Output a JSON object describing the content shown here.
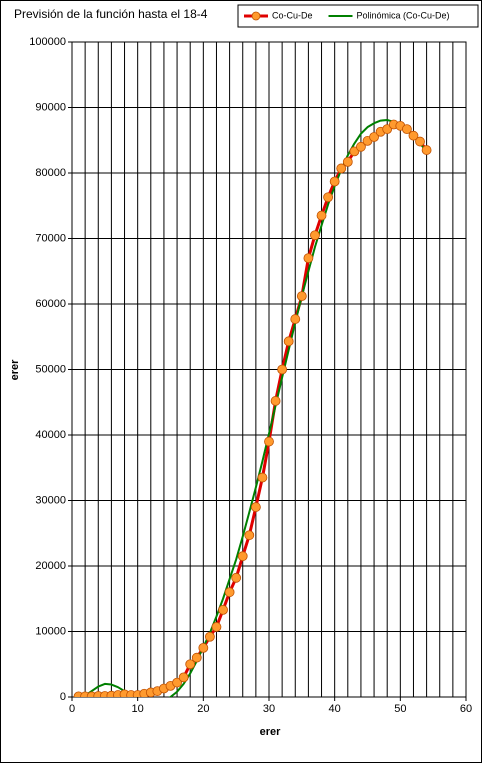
{
  "chart_data": {
    "type": "line",
    "title": "Previsión  de la función  hasta el 18-4",
    "x_label": "erer",
    "y_label": "erer",
    "x": [
      1,
      2,
      3,
      4,
      5,
      6,
      7,
      8,
      9,
      10,
      11,
      12,
      13,
      14,
      15,
      16,
      17,
      18,
      19,
      20,
      21,
      22,
      23,
      24,
      25,
      26,
      27,
      28,
      29,
      30,
      31,
      32,
      33,
      34,
      35,
      36,
      37,
      38,
      39,
      40,
      41,
      42,
      43,
      44,
      45,
      46,
      47,
      48,
      49,
      50,
      51,
      52,
      53,
      54
    ],
    "series": [
      {
        "name": "Co-Cu-De",
        "color": "#e00000",
        "marker_color": "#ff9a2e",
        "values": [
          100,
          100,
          100,
          150,
          150,
          200,
          300,
          400,
          300,
          300,
          500,
          700,
          900,
          1300,
          1700,
          2200,
          3000,
          5000,
          6000,
          7500,
          9200,
          10700,
          13300,
          16000,
          18200,
          21500,
          24700,
          29000,
          33500,
          39000,
          45200,
          50000,
          54300,
          57700,
          61200,
          67000,
          70500,
          73500,
          76300,
          78700,
          80700,
          81700,
          83300,
          84000,
          84900,
          85500,
          86300,
          86700,
          87400,
          87200,
          86700,
          85700,
          84800,
          83500
        ]
      },
      {
        "name": "Polinómica (Co-Cu-De)",
        "color": "#008000",
        "values": [
          null,
          200,
          900,
          1600,
          2000,
          1900,
          1500,
          900,
          300,
          -200,
          -500,
          -700,
          -700,
          -500,
          0,
          800,
          2000,
          3600,
          5500,
          7600,
          9800,
          12300,
          15000,
          18000,
          21000,
          24500,
          28200,
          32000,
          36000,
          40200,
          44500,
          48800,
          53000,
          57200,
          61200,
          65000,
          68700,
          72000,
          75200,
          78000,
          80500,
          82700,
          84500,
          86000,
          87000,
          87600,
          88000,
          88100,
          87800,
          87300,
          86500,
          85500,
          84500,
          83300
        ]
      }
    ],
    "xlim": [
      0,
      60
    ],
    "xticks": [
      0,
      10,
      20,
      30,
      40,
      50,
      60
    ],
    "ylim": [
      0,
      100000
    ],
    "yticks": [
      0,
      10000,
      20000,
      30000,
      40000,
      50000,
      60000,
      70000,
      80000,
      90000,
      100000
    ],
    "grid": true,
    "legend": "top-right"
  }
}
